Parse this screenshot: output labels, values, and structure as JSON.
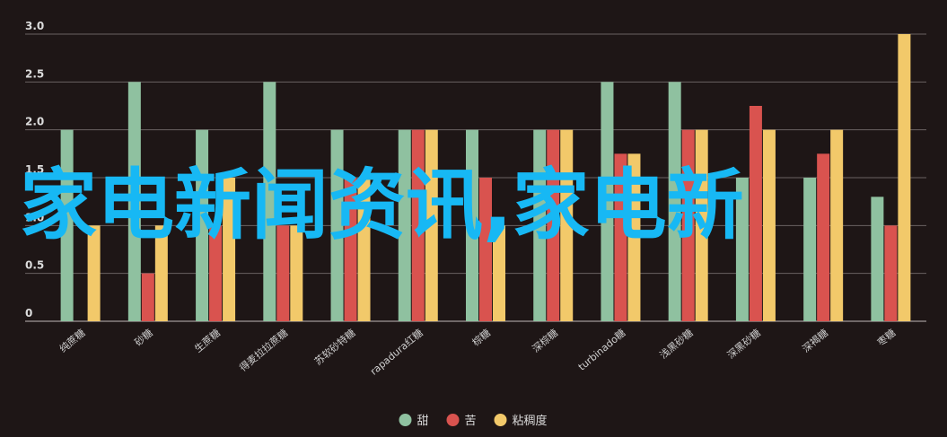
{
  "overlay_text": "家电新闻资讯,家电新",
  "chart_data": {
    "type": "bar",
    "categories": [
      "纯蔗糖",
      "砂糖",
      "生蔗糖",
      "得麦拉拉蔗糖",
      "苏软砂特糖",
      "rapadura红糖",
      "棕糖",
      "深棕糖",
      "turbinado糖",
      "浅黑砂糖",
      "深黑砂糖",
      "深褐糖",
      "枣糖"
    ],
    "series": [
      {
        "name": "甜",
        "color": "#8fc1a0",
        "values": [
          2.0,
          2.5,
          2.0,
          2.5,
          2.0,
          2.0,
          2.0,
          2.0,
          2.5,
          2.5,
          1.5,
          1.5,
          1.3
        ]
      },
      {
        "name": "苦",
        "color": "#d9534f",
        "values": [
          0.0,
          0.5,
          1.0,
          1.0,
          1.5,
          2.0,
          1.5,
          2.0,
          1.75,
          2.0,
          2.25,
          1.75,
          1.0
        ]
      },
      {
        "name": "粘稠度",
        "color": "#f2c96a",
        "values": [
          1.0,
          1.0,
          1.5,
          1.0,
          1.5,
          2.0,
          1.0,
          2.0,
          1.75,
          2.0,
          2.0,
          2.0,
          3.0
        ]
      }
    ],
    "yticks": [
      "0",
      "0.5",
      "1.0",
      "1.5",
      "2.0",
      "2.5",
      "3.0"
    ],
    "ylim": [
      0,
      3
    ],
    "grid": true,
    "legend_position": "bottom"
  }
}
